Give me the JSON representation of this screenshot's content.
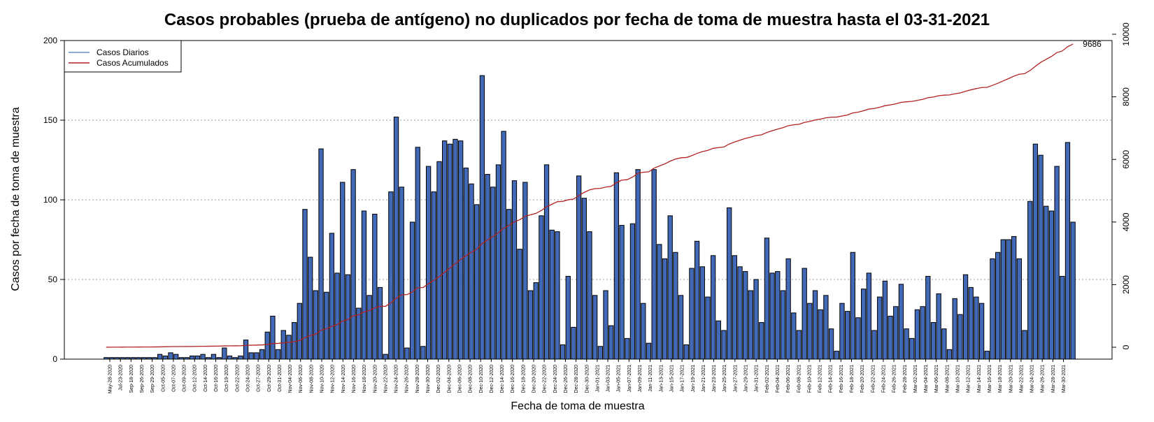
{
  "chart_data": {
    "type": "bar",
    "title": "Casos probables (prueba de antígeno) no duplicados por fecha de toma de muestra hasta el 03-31-2021",
    "xlabel": "Fecha de toma de muestra",
    "ylabel": "Casos por fecha de toma de muestra",
    "ylim": [
      0,
      200
    ],
    "y2lim": [
      0,
      10000
    ],
    "yticks": [
      0,
      50,
      100,
      150,
      200
    ],
    "y2ticks": [
      0,
      2000,
      4000,
      6000,
      8000,
      10000
    ],
    "grid": "horizontal dotted",
    "legend_position": "top-left",
    "cumulative_end_label": "9686",
    "colors": {
      "bar_fill": "#4169b8",
      "bar_stroke": "#000000",
      "line": "#b22222",
      "legend_daily": "#6a8fc7",
      "legend_cumulative": "#b22222"
    },
    "x_tick_labels": [
      "May-28-2020",
      "Jul-23-2020",
      "Sep-18-2020",
      "Sep-26-2020",
      "Sep-29-2020",
      "Oct-05-2020",
      "Oct-07-2020",
      "Oct-09-2020",
      "Oct-12-2020",
      "Oct-14-2020",
      "Oct-16-2020",
      "Oct-19-2020",
      "Oct-22-2020",
      "Oct-24-2020",
      "Oct-27-2020",
      "Oct-29-2020",
      "Oct-31-2020",
      "Nov-04-2020",
      "Nov-06-2020",
      "Nov-08-2020",
      "Nov-10-2020",
      "Nov-12-2020",
      "Nov-14-2020",
      "Nov-16-2020",
      "Nov-18-2020",
      "Nov-20-2020",
      "Nov-22-2020",
      "Nov-24-2020",
      "Nov-26-2020",
      "Nov-28-2020",
      "Nov-30-2020",
      "Dec-02-2020",
      "Dec-04-2020",
      "Dec-06-2020",
      "Dec-08-2020",
      "Dec-10-2020",
      "Dec-12-2020",
      "Dec-14-2020",
      "Dec-16-2020",
      "Dec-18-2020",
      "Dec-20-2020",
      "Dec-22-2020",
      "Dec-24-2020",
      "Dec-26-2020",
      "Dec-28-2020",
      "Dec-30-2020",
      "Jan-01-2021",
      "Jan-03-2021",
      "Jan-05-2021",
      "Jan-07-2021",
      "Jan-09-2021",
      "Jan-11-2021",
      "Jan-13-2021",
      "Jan-15-2021",
      "Jan-17-2021",
      "Jan-19-2021",
      "Jan-21-2021",
      "Jan-23-2021",
      "Jan-25-2021",
      "Jan-27-2021",
      "Jan-29-2021",
      "Jan-31-2021",
      "Feb-02-2021",
      "Feb-04-2021",
      "Feb-06-2021",
      "Feb-08-2021",
      "Feb-10-2021",
      "Feb-12-2021",
      "Feb-14-2021",
      "Feb-16-2021",
      "Feb-18-2021",
      "Feb-20-2021",
      "Feb-22-2021",
      "Feb-24-2021",
      "Feb-26-2021",
      "Feb-28-2021",
      "Mar-02-2021",
      "Mar-04-2021",
      "Mar-06-2021",
      "Mar-08-2021",
      "Mar-10-2021",
      "Mar-12-2021",
      "Mar-14-2021",
      "Mar-16-2021",
      "Mar-18-2021",
      "Mar-20-2021",
      "Mar-22-2021",
      "Mar-24-2021",
      "Mar-26-2021",
      "Mar-28-2021",
      "Mar-30-2021"
    ],
    "series": [
      {
        "name": "Casos Diarios",
        "values": [
          1,
          1,
          1,
          1,
          1,
          1,
          1,
          1,
          1,
          1,
          3,
          2,
          4,
          3,
          1,
          1,
          2,
          2,
          3,
          1,
          3,
          1,
          7,
          2,
          1,
          2,
          12,
          4,
          4,
          6,
          17,
          27,
          6,
          18,
          15,
          23,
          35,
          94,
          64,
          43,
          132,
          42,
          79,
          54,
          111,
          53,
          119,
          32,
          93,
          40,
          91,
          45,
          3,
          105,
          152,
          108,
          7,
          86,
          133,
          8,
          121,
          105,
          124,
          137,
          135,
          138,
          137,
          120,
          110,
          97,
          178,
          116,
          108,
          122,
          143,
          94,
          112,
          69,
          111,
          43,
          48,
          90,
          122,
          81,
          80,
          9,
          52,
          20,
          115,
          101,
          80,
          40,
          8,
          43,
          21,
          117,
          84,
          13,
          85,
          119,
          35,
          10,
          119,
          72,
          63,
          90,
          67,
          40,
          9,
          57,
          74,
          58,
          39,
          65,
          24,
          18,
          95,
          65,
          58,
          55,
          43,
          50,
          23,
          76,
          54,
          55,
          43,
          63,
          29,
          18,
          57,
          35,
          43,
          31,
          40,
          19,
          5,
          35,
          30,
          67,
          26,
          44,
          54,
          18,
          39,
          49,
          27,
          33,
          47,
          19,
          13,
          31,
          33,
          52,
          23,
          41,
          19,
          6,
          38,
          28,
          53,
          45,
          39,
          35,
          5,
          63,
          67,
          75,
          75,
          77,
          63,
          18,
          99,
          135,
          128,
          96,
          93,
          121,
          52,
          136,
          86
        ]
      },
      {
        "name": "Casos Acumulados",
        "values": [
          1,
          2,
          3,
          4,
          5,
          6,
          7,
          8,
          9,
          10,
          13,
          15,
          19,
          22,
          23,
          24,
          26,
          28,
          31,
          32,
          35,
          36,
          43,
          45,
          46,
          48,
          60,
          64,
          68,
          74,
          91,
          118,
          124,
          142,
          157,
          180,
          215,
          309,
          373,
          416,
          548,
          590,
          669,
          723,
          834,
          887,
          1006,
          1038,
          1131,
          1171,
          1262,
          1307,
          1310,
          1415,
          1567,
          1675,
          1682,
          1768,
          1901,
          1909,
          2030,
          2135,
          2259,
          2396,
          2531,
          2669,
          2806,
          2926,
          3036,
          3133,
          3311,
          3427,
          3535,
          3657,
          3800,
          3894,
          4006,
          4075,
          4186,
          4229,
          4277,
          4367,
          4489,
          4570,
          4650,
          4659,
          4711,
          4731,
          4846,
          4947,
          5027,
          5067,
          5075,
          5118,
          5139,
          5256,
          5340,
          5353,
          5438,
          5557,
          5592,
          5602,
          5721,
          5793,
          5856,
          5946,
          6013,
          6053,
          6062,
          6119,
          6193,
          6251,
          6290,
          6355,
          6379,
          6397,
          6492,
          6557,
          6615,
          6670,
          6713,
          6763,
          6786,
          6862,
          6916,
          6971,
          7014,
          7077,
          7106,
          7124,
          7181,
          7216,
          7259,
          7290,
          7330,
          7349,
          7354,
          7389,
          7419,
          7486,
          7512,
          7556,
          7610,
          7628,
          7667,
          7716,
          7743,
          7776,
          7823,
          7842,
          7855,
          7886,
          7919,
          7971,
          7994,
          8035,
          8054,
          8060,
          8098,
          8126,
          8179,
          8224,
          8263,
          8298,
          8303,
          8366,
          8433,
          8508,
          8583,
          8660,
          8723,
          8741,
          8840,
          8975,
          9103,
          9199,
          9292,
          9413,
          9465,
          9601,
          9686
        ]
      }
    ]
  }
}
